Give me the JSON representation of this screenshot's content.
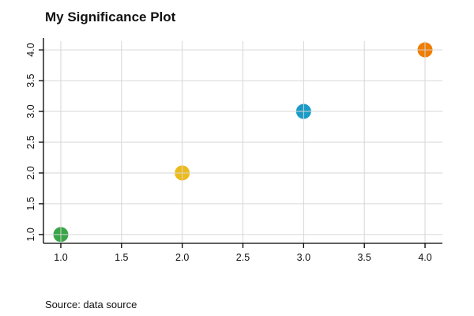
{
  "title": "My Significance Plot",
  "source_note": "Source: data source",
  "chart_data": {
    "type": "scatter",
    "title": "My Significance Plot",
    "x": [
      1,
      2,
      3,
      4
    ],
    "y": [
      1,
      2,
      3,
      4
    ],
    "point_colors": [
      "#38a547",
      "#ecba1b",
      "#1a9bc7",
      "#ef7d00"
    ],
    "point_radius": 9.5,
    "xlim": [
      1,
      4
    ],
    "ylim": [
      1,
      4
    ],
    "xticks": [
      1.0,
      1.5,
      2.0,
      2.5,
      3.0,
      3.5,
      4.0
    ],
    "yticks": [
      1.0,
      1.5,
      2.0,
      2.5,
      3.0,
      3.5,
      4.0
    ],
    "tick_label_format": "one-decimal",
    "grid": true,
    "grid_color": "#d6d6d6",
    "axis_color": "#000000",
    "legend": "none",
    "source_note": "Source: data source"
  }
}
